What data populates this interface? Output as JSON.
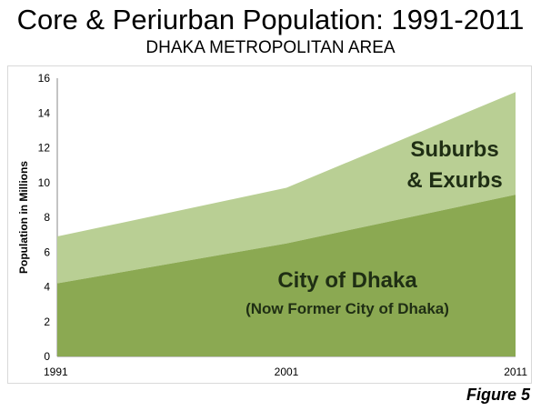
{
  "header": {
    "title": "Core & Periurban Population: 1991-2011",
    "subtitle": "DHAKA METROPOLITAN AREA"
  },
  "footer": {
    "figure_label": "Figure 5"
  },
  "chart_data": {
    "type": "area",
    "stacked": true,
    "x": [
      "1991",
      "2001",
      "2011"
    ],
    "series": [
      {
        "values": [
          4.2,
          6.5,
          9.3
        ],
        "color": "#8ba952"
      },
      {
        "values": [
          2.7,
          3.2,
          5.9
        ],
        "color": "#b9cf94"
      }
    ],
    "ylabel": "Population in Millions",
    "xlabel": "",
    "ylim": [
      0,
      16
    ],
    "yticks": [
      0,
      2,
      4,
      6,
      8,
      10,
      12,
      14,
      16
    ],
    "annotations": {
      "suburbs_line1": "Suburbs",
      "suburbs_line2": "& Exurbs",
      "city_line1": "City of Dhaka",
      "city_line2": "(Now Former City of Dhaka)"
    },
    "annotation_color": "#1f2e14",
    "grid": false,
    "legend": "none"
  }
}
